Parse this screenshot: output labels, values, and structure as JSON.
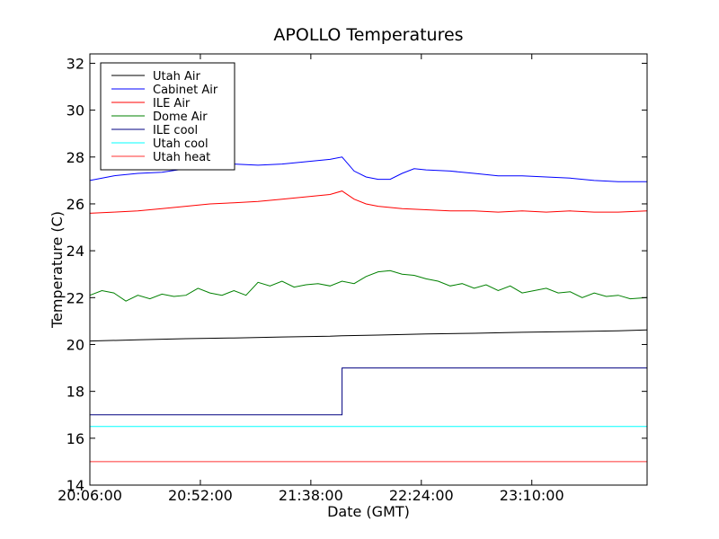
{
  "chart_data": {
    "type": "line",
    "title": "APOLLO Temperatures",
    "xlabel": "Date (GMT)",
    "ylabel": "Temperature (C)",
    "x_ticks": [
      "20:06:00",
      "20:52:00",
      "21:38:00",
      "22:24:00",
      "23:10:00"
    ],
    "xlim_minutes": [
      0,
      232
    ],
    "ylim": [
      14,
      32.4
    ],
    "y_ticks": [
      14,
      16,
      18,
      20,
      22,
      24,
      26,
      28,
      30,
      32
    ],
    "legend_position": "top-left",
    "grid": false,
    "series": [
      {
        "name": "Utah Air",
        "color": "#000000",
        "x": [
          0,
          20,
          40,
          60,
          80,
          100,
          105,
          120,
          140,
          160,
          180,
          200,
          220,
          232
        ],
        "y": [
          20.15,
          20.2,
          20.25,
          20.28,
          20.32,
          20.35,
          20.37,
          20.4,
          20.45,
          20.48,
          20.52,
          20.55,
          20.58,
          20.62
        ]
      },
      {
        "name": "Cabinet Air",
        "color": "#0000ff",
        "x": [
          0,
          10,
          20,
          30,
          40,
          50,
          60,
          70,
          80,
          90,
          100,
          105,
          110,
          115,
          120,
          125,
          130,
          135,
          140,
          150,
          160,
          170,
          180,
          190,
          200,
          210,
          220,
          232
        ],
        "y": [
          27.0,
          27.2,
          27.3,
          27.35,
          27.5,
          27.6,
          27.7,
          27.65,
          27.7,
          27.8,
          27.9,
          28.0,
          27.4,
          27.15,
          27.05,
          27.05,
          27.3,
          27.5,
          27.45,
          27.4,
          27.3,
          27.2,
          27.2,
          27.15,
          27.1,
          27.0,
          26.95,
          26.95
        ]
      },
      {
        "name": "ILE Air",
        "color": "#ff0000",
        "x": [
          0,
          10,
          20,
          30,
          40,
          50,
          60,
          70,
          80,
          90,
          100,
          105,
          110,
          115,
          120,
          130,
          140,
          150,
          160,
          170,
          180,
          190,
          200,
          210,
          220,
          232
        ],
        "y": [
          25.6,
          25.65,
          25.7,
          25.8,
          25.9,
          26.0,
          26.05,
          26.1,
          26.2,
          26.3,
          26.4,
          26.55,
          26.2,
          26.0,
          25.9,
          25.8,
          25.75,
          25.7,
          25.7,
          25.65,
          25.7,
          25.65,
          25.7,
          25.65,
          25.65,
          25.7
        ]
      },
      {
        "name": "Dome Air",
        "color": "#008000",
        "x": [
          0,
          5,
          10,
          15,
          20,
          25,
          30,
          35,
          40,
          45,
          50,
          55,
          60,
          65,
          70,
          75,
          80,
          85,
          90,
          95,
          100,
          105,
          110,
          115,
          120,
          125,
          130,
          135,
          140,
          145,
          150,
          155,
          160,
          165,
          170,
          175,
          180,
          185,
          190,
          195,
          200,
          205,
          210,
          215,
          220,
          225,
          232
        ],
        "y": [
          22.1,
          22.3,
          22.2,
          21.85,
          22.1,
          21.95,
          22.15,
          22.05,
          22.1,
          22.4,
          22.2,
          22.1,
          22.3,
          22.1,
          22.65,
          22.5,
          22.7,
          22.45,
          22.55,
          22.6,
          22.5,
          22.7,
          22.6,
          22.9,
          23.1,
          23.15,
          23.0,
          22.95,
          22.8,
          22.7,
          22.5,
          22.6,
          22.4,
          22.55,
          22.3,
          22.5,
          22.2,
          22.3,
          22.4,
          22.2,
          22.25,
          22.0,
          22.2,
          22.05,
          22.1,
          21.95,
          22.0
        ]
      },
      {
        "name": "ILE cool",
        "color": "#000080",
        "x": [
          0,
          105,
          105,
          232
        ],
        "y": [
          17.0,
          17.0,
          19.0,
          19.0
        ]
      },
      {
        "name": "Utah cool",
        "color": "#00ffff",
        "x": [
          0,
          232
        ],
        "y": [
          16.5,
          16.5
        ]
      },
      {
        "name": "Utah heat",
        "color": "#ff3333",
        "x": [
          0,
          232
        ],
        "y": [
          15.0,
          15.0
        ]
      }
    ]
  }
}
